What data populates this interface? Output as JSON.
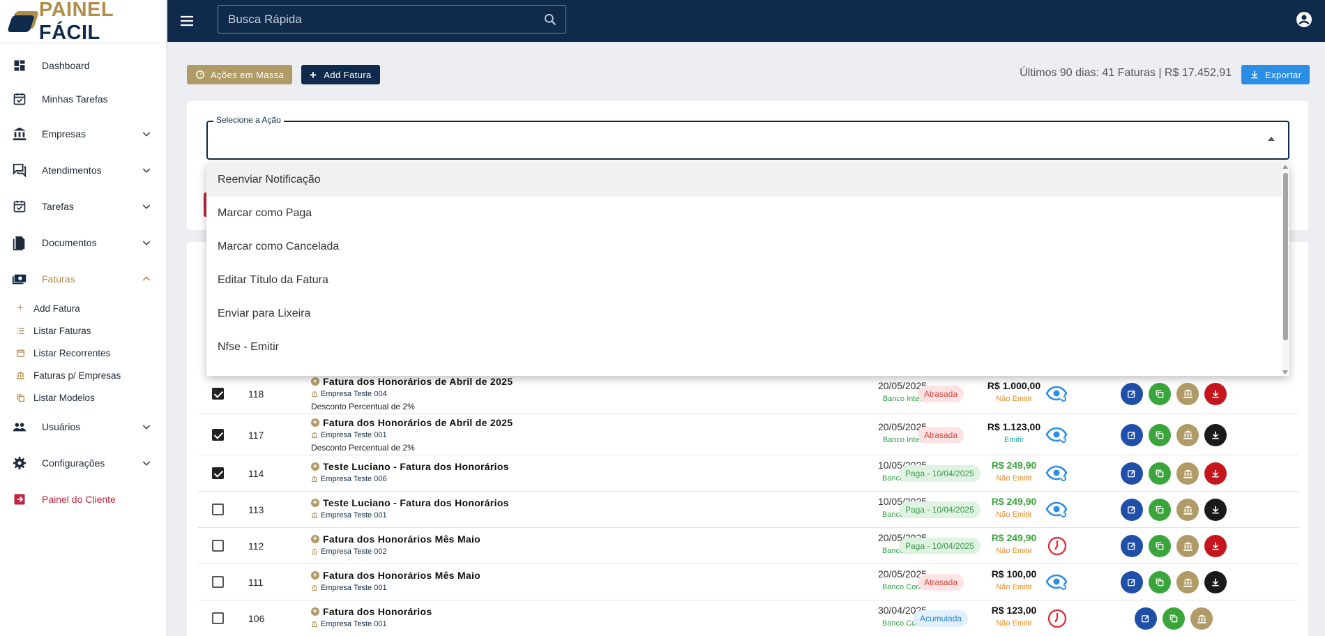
{
  "brand": {
    "word1": "PAINEL",
    "word2": "FÁCIL"
  },
  "search": {
    "placeholder": "Busca Rápida"
  },
  "sidebar": {
    "items": [
      {
        "label": "Dashboard",
        "icon": "dashboard-icon"
      },
      {
        "label": "Minhas Tarefas",
        "icon": "task-check-icon"
      },
      {
        "label": "Empresas",
        "icon": "bank-icon",
        "expandable": true
      },
      {
        "label": "Atendimentos",
        "icon": "chat-icon",
        "expandable": true
      },
      {
        "label": "Tarefas",
        "icon": "calendar-check-icon",
        "expandable": true
      },
      {
        "label": "Documentos",
        "icon": "document-icon",
        "expandable": true
      },
      {
        "label": "Faturas",
        "icon": "money-icon",
        "expandable": true,
        "expanded": true,
        "active": true
      },
      {
        "label": "Usuários",
        "icon": "users-icon",
        "expandable": true
      },
      {
        "label": "Configurações",
        "icon": "gear-icon",
        "expandable": true
      },
      {
        "label": "Painel do Cliente",
        "icon": "exit-icon"
      }
    ],
    "faturas_sub": [
      {
        "label": "Add Fatura",
        "icon": "plus-icon"
      },
      {
        "label": "Listar Faturas",
        "icon": "list-icon"
      },
      {
        "label": "Listar Recorrentes",
        "icon": "calendar-icon"
      },
      {
        "label": "Faturas p/ Empresas",
        "icon": "bank-icon"
      },
      {
        "label": "Listar Modelos",
        "icon": "copy-icon"
      }
    ]
  },
  "toolbar": {
    "mass_label": "Ações em Massa",
    "add_label": "Add Fatura",
    "summary": "Últimos 90 dias: 41 Faturas | R$ 17.452,91",
    "export_label": "Exportar"
  },
  "action_select": {
    "label": "Selecione a Ação",
    "value": "",
    "options": [
      "Reenviar Notificação",
      "Marcar como Paga",
      "Marcar como Cancelada",
      "Editar Título da Fatura",
      "Enviar para Lixeira",
      "Nfse - Emitir"
    ],
    "highlighted_index": 0
  },
  "colors": {
    "navy": "#0f2a4a",
    "gold": "#b08d4a",
    "accent_blue": "#2a8de6",
    "danger": "#c0233c"
  },
  "invoices": [
    {
      "checked": true,
      "id": "118",
      "title": "Fatura dos Honorários de Abril de 2025",
      "company": "Empresa Teste 004",
      "desc": "Desconto Percentual de 2%",
      "date": "20/05/2025",
      "bank": "Banco Inter",
      "value": "R$ 1.000,00",
      "value_green": false,
      "nfse": "Não Emitir",
      "status": "Atrasada",
      "status_type": "late",
      "view": "eye",
      "download": "red",
      "bank_btn": true
    },
    {
      "checked": true,
      "id": "117",
      "title": "Fatura dos Honorários de Abril de 2025",
      "company": "Empresa Teste 001",
      "desc": "Desconto Percentual de 2%",
      "date": "20/05/2025",
      "bank": "Banco Inter",
      "value": "R$ 1.123,00",
      "value_green": false,
      "nfse": "Emitir",
      "status": "Atrasada",
      "status_type": "late",
      "view": "eye",
      "download": "dark",
      "bank_btn": true
    },
    {
      "checked": true,
      "id": "114",
      "title": "Teste Luciano - Fatura dos Honorários",
      "company": "Empresa Teste 006",
      "desc": "",
      "date": "10/05/2025",
      "bank": "Banco Cora",
      "value": "R$ 249,90",
      "value_green": true,
      "nfse": "Não Emitir",
      "status": "Paga - 10/04/2025",
      "status_type": "paid",
      "view": "eye",
      "download": "red",
      "bank_btn": true
    },
    {
      "checked": false,
      "id": "113",
      "title": "Teste Luciano - Fatura dos Honorários",
      "company": "Empresa Teste 001",
      "desc": "",
      "date": "10/05/2025",
      "bank": "Banco Cora",
      "value": "R$ 249,90",
      "value_green": true,
      "nfse": "Não Emitir",
      "status": "Paga - 10/04/2025",
      "status_type": "paid",
      "view": "eye",
      "download": "dark",
      "bank_btn": true
    },
    {
      "checked": false,
      "id": "112",
      "title": "Fatura dos Honorários Mês Maio",
      "company": "Empresa Teste 002",
      "desc": "",
      "date": "20/05/2025",
      "bank": "Banco Cora",
      "value": "R$ 249,90",
      "value_green": true,
      "nfse": "Não Emitir",
      "status": "Paga - 10/04/2025",
      "status_type": "paid",
      "view": "clock",
      "download": "red",
      "bank_btn": true
    },
    {
      "checked": false,
      "id": "111",
      "title": "Fatura dos Honorários Mês Maio",
      "company": "Empresa Teste 001",
      "desc": "",
      "date": "20/05/2025",
      "bank": "Banco Cora",
      "value": "R$ 100,00",
      "value_green": false,
      "nfse": "Não Emitir",
      "status": "Atrasada",
      "status_type": "late",
      "view": "eye",
      "download": "dark",
      "bank_btn": true
    },
    {
      "checked": false,
      "id": "106",
      "title": "Fatura dos Honorários",
      "company": "Empresa Teste 001",
      "desc": "",
      "date": "30/04/2025",
      "bank": "Banco Cora",
      "value": "R$ 123,00",
      "value_green": false,
      "nfse": "Não Emitir",
      "status": "Acumulada",
      "status_type": "acc",
      "view": "clock",
      "download": "none",
      "bank_btn": true
    }
  ]
}
